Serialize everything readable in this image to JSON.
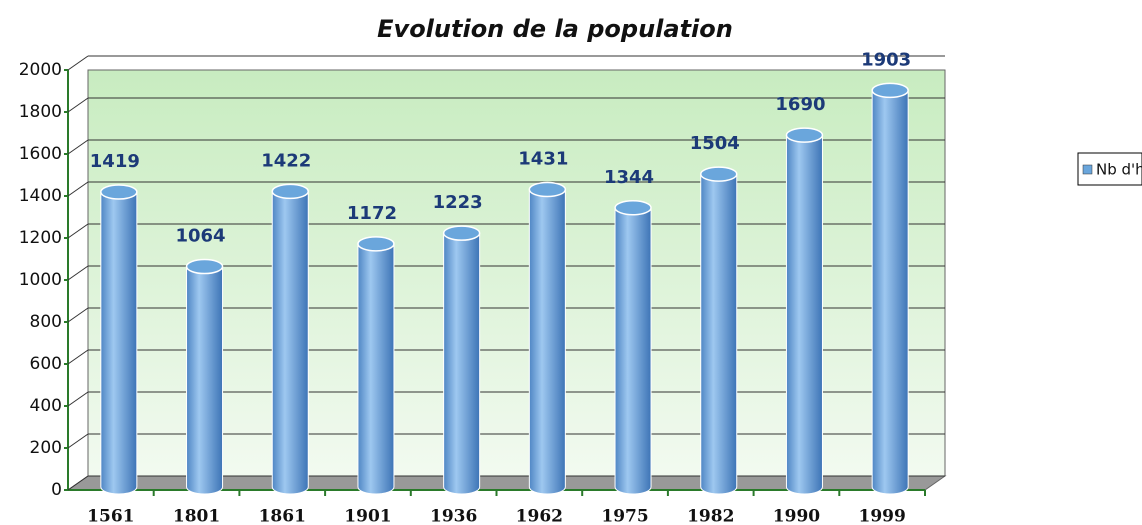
{
  "chart_data": {
    "type": "bar",
    "title": "Evolution de la population",
    "categories": [
      "1561",
      "1801",
      "1861",
      "1901",
      "1936",
      "1962",
      "1975",
      "1982",
      "1990",
      "1999"
    ],
    "series": [
      {
        "name": "Nb d'habitants",
        "color": "#6aa6dc",
        "values": [
          1419,
          1064,
          1422,
          1172,
          1223,
          1431,
          1344,
          1504,
          1690,
          1903
        ]
      }
    ],
    "ylim": [
      0,
      2000
    ],
    "yticks": [
      0,
      200,
      400,
      600,
      800,
      1000,
      1200,
      1400,
      1600,
      1800,
      2000
    ],
    "grid": true,
    "legend": "right"
  }
}
